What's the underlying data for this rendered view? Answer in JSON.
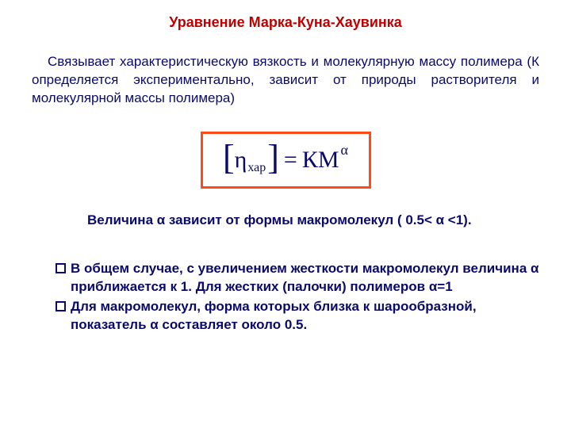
{
  "colors": {
    "title_color": "#c00000",
    "desc_color": "#0a0a6b",
    "equation_border": "#ff4a1a",
    "equation_text": "#0a0a6b",
    "alpha_line_color": "#0a0a6b",
    "bullet_text_color": "#0a0a6b",
    "bullet_marker_border": "#0a0a6b",
    "background": "#ffffff"
  },
  "title": "Уравнение Марка-Куна-Хаувинка",
  "desc": "Связывает характеристическую вязкость и молекулярную массу полимера (К определяется экспериментально, зависит от природы   растворителя и молекулярной массы полимера)",
  "equation": {
    "left_bracket": "[",
    "symbol": "η",
    "subscript": "хар",
    "right_bracket": "]",
    "equals": "=",
    "rhs_base": "КM",
    "rhs_exp": "α"
  },
  "alpha_line": "Величина α зависит от формы макромолекул ( 0.5< α <1).",
  "bullets": [
    "В общем случае, с увеличением жесткости макромолекул величина α приближается к 1.  Для жестких  (палочки) полимеров α=1",
    "Для макромолекул, форма которых близка к шарообразной, показатель α составляет около 0.5."
  ]
}
